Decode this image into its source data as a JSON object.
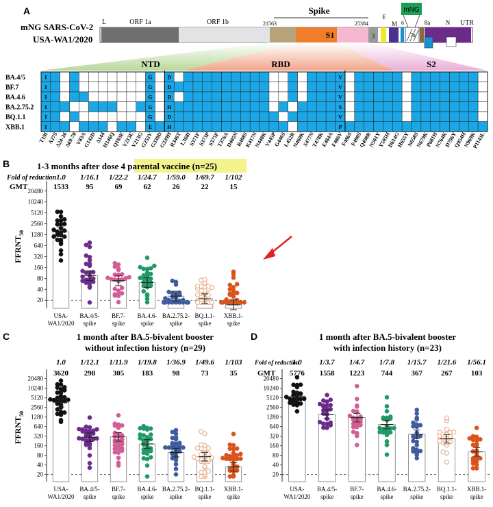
{
  "panel_labels": {
    "a": "A",
    "b": "B",
    "c": "C",
    "d": "D"
  },
  "panel_a": {
    "virus_line1": "mNG SARS-CoV-2",
    "virus_line2": "USA-WA1/2020",
    "genome": {
      "L": "L",
      "orf1a": "ORF 1a",
      "orf1b": "ORF 1b",
      "spike": "Spike",
      "pos_start": "21563",
      "pos_end": "25384",
      "s1": "S1",
      "orf3": "3",
      "e": "E",
      "m": "M",
      "orf6": "6",
      "orf7": "7a",
      "orf8": "8a",
      "n": "N",
      "utr": "UTR",
      "mng": "mNG"
    },
    "regions": {
      "ntd": "NTD",
      "rbd": "RBD",
      "s2": "S2"
    },
    "variants": [
      "BA.4/5",
      "BF.7",
      "BA.4.6",
      "BA.2.75.2",
      "BQ.1.1",
      "XBB.1"
    ],
    "mutations": [
      "T19I",
      "A27S",
      "Δ24-26",
      "Δ69-70",
      "V83A",
      "G142D",
      "Δ144",
      "H146Q",
      "Q183E",
      "V213E",
      "V213G",
      "G252V",
      "G339D",
      "G339H",
      "R346T",
      "L368I",
      "S371F",
      "S373P",
      "S375F",
      "T376A",
      "D405N",
      "R408S",
      "K417N",
      "N440K",
      "V445P",
      "G446S",
      "L452R",
      "N460K",
      "S477N",
      "T478K",
      "E484A",
      "F486V",
      "F486S",
      "F490S",
      "Q498R",
      "N501Y",
      "Y505H",
      "D614G",
      "H655Y",
      "N658S",
      "N679K",
      "P681H",
      "N764K",
      "D796Y",
      "Q954H",
      "N969K",
      "P1143L"
    ],
    "cell_letters": [
      [
        "I",
        "",
        "",
        "",
        "",
        "",
        "",
        "",
        "",
        "",
        "",
        "G",
        "",
        "D",
        "",
        "",
        "",
        "",
        "",
        "",
        "",
        "",
        "",
        "",
        "",
        "",
        "",
        "",
        "",
        "",
        "",
        "V",
        "",
        "",
        "",
        "",
        "",
        "",
        "",
        "",
        "",
        "",
        "",
        "",
        "",
        "",
        ""
      ],
      [
        "I",
        "",
        "",
        "",
        "",
        "",
        "",
        "",
        "",
        "",
        "",
        "G",
        "",
        "D",
        "",
        "",
        "",
        "",
        "",
        "",
        "",
        "",
        "",
        "",
        "",
        "",
        "",
        "",
        "",
        "",
        "",
        "V",
        "",
        "",
        "",
        "",
        "",
        "",
        "",
        "",
        "",
        "",
        "",
        "",
        "",
        "",
        ""
      ],
      [
        "I",
        "",
        "",
        "",
        "",
        "",
        "",
        "",
        "",
        "",
        "",
        "G",
        "",
        "D",
        "",
        "",
        "",
        "",
        "",
        "",
        "",
        "",
        "",
        "",
        "",
        "",
        "",
        "",
        "",
        "",
        "",
        "V",
        "",
        "",
        "",
        "",
        "",
        "",
        "",
        "",
        "",
        "",
        "",
        "",
        "",
        "",
        ""
      ],
      [
        "I",
        "",
        "",
        "",
        "",
        "",
        "",
        "",
        "",
        "",
        "",
        "G",
        "",
        "H",
        "",
        "",
        "",
        "",
        "",
        "",
        "",
        "",
        "",
        "",
        "",
        "",
        "",
        "",
        "",
        "",
        "",
        "S",
        "",
        "",
        "",
        "",
        "",
        "",
        "",
        "",
        "",
        "",
        "",
        "",
        "",
        "",
        ""
      ],
      [
        "I",
        "",
        "",
        "",
        "",
        "",
        "",
        "",
        "",
        "",
        "",
        "G",
        "",
        "D",
        "",
        "",
        "",
        "",
        "",
        "",
        "",
        "",
        "",
        "",
        "",
        "",
        "",
        "",
        "",
        "",
        "",
        "V",
        "",
        "",
        "",
        "",
        "",
        "",
        "",
        "",
        "",
        "",
        "",
        "",
        "",
        "",
        ""
      ],
      [
        "I",
        "",
        "",
        "",
        "",
        "",
        "",
        "",
        "",
        "",
        "",
        "E",
        "",
        "H",
        "",
        "",
        "",
        "",
        "",
        "",
        "",
        "",
        "",
        "",
        "",
        "",
        "",
        "",
        "",
        "",
        "",
        "P",
        "",
        "",
        "",
        "",
        "",
        "",
        "",
        "",
        "",
        "",
        "",
        "",
        "",
        "",
        ""
      ]
    ],
    "cells": [
      [
        1,
        1,
        0,
        1,
        0,
        0,
        0,
        0,
        0,
        0,
        0,
        1,
        0,
        1,
        0,
        1,
        1,
        1,
        1,
        1,
        1,
        1,
        1,
        1,
        0,
        0,
        1,
        0,
        1,
        1,
        1,
        1,
        0,
        1,
        1,
        1,
        1,
        1,
        0,
        1,
        1,
        1,
        1,
        1,
        1,
        1,
        0
      ],
      [
        1,
        1,
        0,
        1,
        0,
        0,
        0,
        0,
        0,
        0,
        0,
        1,
        0,
        1,
        1,
        1,
        1,
        1,
        1,
        1,
        1,
        1,
        1,
        1,
        0,
        0,
        1,
        0,
        1,
        1,
        1,
        1,
        0,
        1,
        1,
        1,
        1,
        1,
        0,
        1,
        1,
        1,
        1,
        1,
        1,
        1,
        0
      ],
      [
        1,
        1,
        0,
        1,
        1,
        0,
        0,
        0,
        0,
        0,
        0,
        1,
        0,
        1,
        0,
        1,
        1,
        1,
        1,
        1,
        1,
        1,
        1,
        1,
        0,
        0,
        1,
        0,
        1,
        1,
        1,
        1,
        0,
        1,
        1,
        1,
        1,
        1,
        0,
        1,
        1,
        1,
        1,
        1,
        1,
        1,
        0
      ],
      [
        1,
        1,
        1,
        0,
        0,
        1,
        1,
        1,
        0,
        0,
        1,
        1,
        0,
        1,
        1,
        1,
        1,
        1,
        1,
        1,
        1,
        1,
        1,
        1,
        0,
        1,
        0,
        1,
        1,
        1,
        1,
        1,
        0,
        1,
        1,
        1,
        1,
        1,
        0,
        1,
        1,
        1,
        1,
        1,
        1,
        1,
        0
      ],
      [
        1,
        1,
        0,
        1,
        0,
        0,
        0,
        0,
        0,
        0,
        0,
        1,
        0,
        1,
        1,
        1,
        1,
        1,
        1,
        1,
        1,
        1,
        1,
        1,
        1,
        0,
        1,
        1,
        1,
        1,
        1,
        1,
        0,
        1,
        1,
        1,
        1,
        1,
        0,
        1,
        1,
        1,
        1,
        1,
        1,
        1,
        0
      ],
      [
        1,
        1,
        1,
        0,
        1,
        1,
        1,
        0,
        1,
        1,
        0,
        1,
        1,
        1,
        1,
        1,
        1,
        1,
        1,
        1,
        1,
        1,
        1,
        1,
        1,
        1,
        0,
        1,
        1,
        1,
        1,
        1,
        1,
        1,
        1,
        1,
        1,
        1,
        1,
        1,
        1,
        1,
        1,
        1,
        1,
        1,
        1
      ]
    ]
  },
  "colors": {
    "cell_blue": "#1ba7e6",
    "highlight_yellow": "#f4f28c",
    "arrow_red": "#e31e24",
    "mng_green": "#1a9e55",
    "groups": [
      "#111111",
      "#6b2b8a",
      "#d25e95",
      "#1f9a66",
      "#405c9e",
      "#e8b28f",
      "#d9531b"
    ],
    "hollow": [
      false,
      false,
      false,
      false,
      false,
      true,
      false
    ]
  },
  "panel_b": {
    "title_before": "1-3 months after ",
    "title_highlight": "dose 4 parental vaccine",
    "title_after": " (n=25)",
    "fold_label": "Fold of reduction",
    "gmt_label": "GMT"
  },
  "panel_c": {
    "title1": "1 month after BA.5-bivalent booster",
    "title2": "without infection history (n=29)"
  },
  "panel_d": {
    "title1": "1 month after BA.5-bivalent booster",
    "title2": "with infection history (n=23)",
    "fold_label": "Fold of reduction",
    "gmt_label": "GMT"
  },
  "chart_data": [
    {
      "type": "scatter",
      "panel": "B",
      "categories": [
        "USA-WA1/2020",
        "BA.4/5-spike",
        "BF.7-spike",
        "BA.4.6-spike",
        "BA.2.75.2-spike",
        "BQ.1.1-spike",
        "XBB.1-spike"
      ],
      "fold": [
        "1.0",
        "1/16.1",
        "1/22.2",
        "1/24.7",
        "1/59.0",
        "1/69.7",
        "1/102"
      ],
      "gmt": [
        1533,
        95,
        69,
        62,
        26,
        22,
        15
      ],
      "ylabel": "FFRNT",
      "ylabel_sub": "50",
      "yscale": "log2",
      "yticks": [
        20,
        40,
        80,
        160,
        320,
        640,
        1280,
        2560,
        5120,
        10240,
        20480
      ],
      "ylim": [
        12,
        30000
      ],
      "detection_limit": 20,
      "n": 25
    },
    {
      "type": "scatter",
      "panel": "C",
      "categories": [
        "USA-WA1/2020",
        "BA.4/5-spike",
        "BF.7-spike",
        "BA.4.6-spike",
        "BA.2.75.2-spike",
        "BQ.1.1-spike",
        "XBB.1-spike"
      ],
      "fold": [
        "1.0",
        "1/12.1",
        "1/11.9",
        "1/19.8",
        "1/36.9",
        "1/49.6",
        "1/103"
      ],
      "gmt": [
        3620,
        298,
        305,
        183,
        98,
        73,
        35
      ],
      "ylabel": "FFRNT",
      "ylabel_sub": "50",
      "yscale": "log2",
      "yticks": [
        20,
        40,
        80,
        160,
        320,
        640,
        1280,
        2560,
        5120,
        10240,
        20480
      ],
      "ylim": [
        12,
        30000
      ],
      "detection_limit": 20,
      "n": 29
    },
    {
      "type": "scatter",
      "panel": "D",
      "categories": [
        "USA-WA1/2020",
        "BA.4/5-spike",
        "BF.7-spike",
        "BA.4.6-spike",
        "BA.2.75.2-spike",
        "BQ.1.1-spike",
        "XBB.1-spike"
      ],
      "fold": [
        "1.0",
        "1/3.7",
        "1/4.7",
        "1/7.8",
        "1/15.7",
        "1/21.6",
        "1/56.1"
      ],
      "gmt": [
        5776,
        1558,
        1223,
        744,
        367,
        267,
        103
      ],
      "ylabel": "",
      "yscale": "log2",
      "yticks": [
        20,
        40,
        80,
        160,
        320,
        640,
        1280,
        2560,
        5120,
        10240,
        20480
      ],
      "ylim": [
        12,
        30000
      ],
      "detection_limit": 20,
      "n": 23
    }
  ]
}
